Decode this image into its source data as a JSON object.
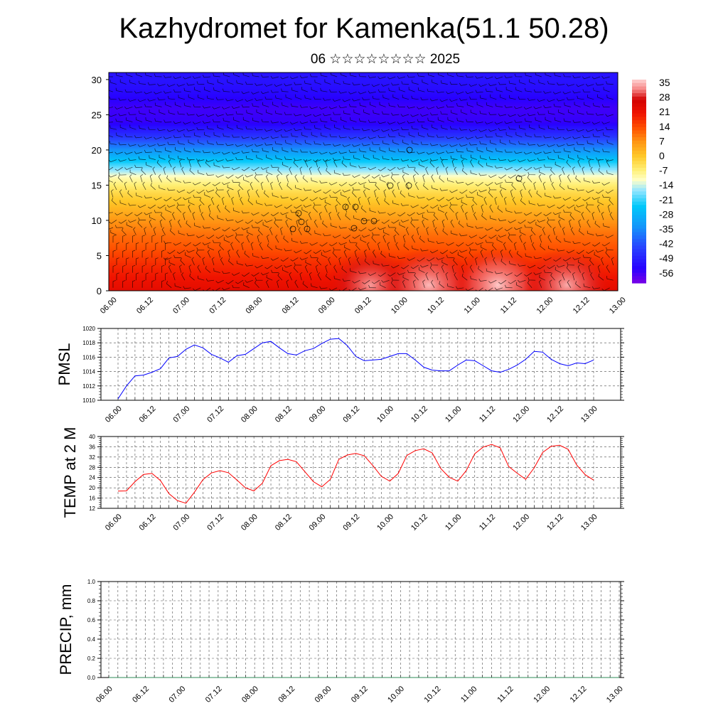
{
  "header": {
    "title": "Kazhydromet for Kamenka(51.1 50.28)",
    "subtitle": "06 ☆☆☆☆☆☆☆☆ 2025"
  },
  "chart_data": [
    {
      "type": "heatmap",
      "title": "",
      "xlabel": "",
      "ylabel": "",
      "x_ticks": [
        "06.00",
        "06.12",
        "07.00",
        "07.12",
        "08.00",
        "08.12",
        "09.00",
        "09.12",
        "10.00",
        "10.12",
        "11.00",
        "11.12",
        "12.00",
        "12.12",
        "13.00"
      ],
      "y_ticks": [
        0,
        5,
        10,
        15,
        20,
        25,
        30
      ],
      "ylim": [
        0,
        31
      ],
      "colorbar_labels": [
        "35",
        "28",
        "21",
        "14",
        "7",
        "0",
        "-7",
        "-14",
        "-21",
        "-28",
        "-35",
        "-42",
        "-49",
        "-56"
      ],
      "colormap_range": [
        -63,
        38
      ],
      "overlay": "wind barbs",
      "profile_levels": [
        0,
        2,
        4,
        6,
        8,
        10,
        12,
        14,
        16,
        18,
        20,
        22,
        24,
        26,
        28,
        30
      ],
      "profile_values": [
        24,
        21,
        18,
        14,
        11,
        7,
        2,
        -3,
        -10,
        -22,
        -35,
        -48,
        -57,
        -58,
        -55,
        -53
      ],
      "surface_hotspots": [
        {
          "x": 3.6,
          "value": 32
        },
        {
          "x": 4.4,
          "value": 34
        },
        {
          "x": 5.35,
          "value": 35
        },
        {
          "x": 6.3,
          "value": 33
        }
      ]
    },
    {
      "type": "line",
      "ylabel": "PMSL",
      "ylim": [
        1010,
        1020
      ],
      "y_ticks": [
        1010,
        1012,
        1014,
        1016,
        1018,
        1020
      ],
      "x_ticks": [
        "06.00",
        "06.12",
        "07.00",
        "07.12",
        "08.00",
        "08.12",
        "09.00",
        "09.12",
        "10.00",
        "10.12",
        "11.00",
        "11.12",
        "12.00",
        "12.12",
        "13.00"
      ],
      "series": [
        {
          "color": "#0000ff",
          "values": [
            1010.2,
            1012.0,
            1013.4,
            1013.5,
            1013.9,
            1014.4,
            1015.9,
            1016.1,
            1017.1,
            1017.7,
            1017.3,
            1016.4,
            1015.9,
            1015.3,
            1016.2,
            1016.4,
            1017.2,
            1018.0,
            1018.2,
            1017.3,
            1016.5,
            1016.3,
            1016.9,
            1017.2,
            1017.9,
            1018.5,
            1018.6,
            1017.6,
            1016.1,
            1015.5,
            1015.6,
            1015.7,
            1016.1,
            1016.5,
            1016.5,
            1015.6,
            1014.6,
            1014.2,
            1014.1,
            1014.1,
            1014.9,
            1015.6,
            1015.5,
            1014.8,
            1014.1,
            1013.9,
            1014.3,
            1014.9,
            1015.7,
            1016.8,
            1016.7,
            1015.7,
            1015.1,
            1014.8,
            1015.2,
            1015.1,
            1015.6
          ]
        }
      ]
    },
    {
      "type": "line",
      "ylabel": "TEMP at 2 M",
      "ylim": [
        12,
        40
      ],
      "y_ticks": [
        12,
        16,
        20,
        24,
        28,
        32,
        36,
        40
      ],
      "x_ticks": [
        "06.00",
        "06.12",
        "07.00",
        "07.12",
        "08.00",
        "08.12",
        "09.00",
        "09.12",
        "10.00",
        "10.12",
        "11.00",
        "11.12",
        "12.00",
        "12.12",
        "13.00"
      ],
      "series": [
        {
          "color": "#ff0000",
          "values": [
            18.7,
            18.8,
            22.4,
            25.2,
            25.6,
            22.8,
            17.7,
            15.0,
            14.0,
            18.3,
            23.2,
            25.8,
            26.7,
            25.9,
            23.0,
            20.0,
            18.8,
            21.8,
            28.6,
            30.6,
            31.1,
            30.2,
            26.3,
            22.4,
            20.4,
            23.3,
            31.1,
            32.8,
            33.4,
            32.5,
            28.7,
            24.5,
            22.6,
            25.6,
            32.6,
            34.5,
            35.2,
            33.6,
            27.5,
            24.1,
            22.6,
            26.7,
            33.3,
            35.9,
            36.9,
            35.6,
            28.3,
            25.7,
            23.3,
            27.8,
            33.8,
            36.2,
            36.6,
            35.0,
            28.9,
            25.1,
            23.0
          ]
        }
      ]
    },
    {
      "type": "line",
      "ylabel": "PRECIP, mm",
      "ylim": [
        0.0,
        1.0
      ],
      "y_ticks": [
        "0.0",
        "0.2",
        "0.4",
        "0.6",
        "0.8",
        "1.0"
      ],
      "x_ticks": [
        "06.00",
        "06.12",
        "07.00",
        "07.12",
        "08.00",
        "08.12",
        "09.00",
        "09.12",
        "10.00",
        "10.12",
        "11.00",
        "11.12",
        "12.00",
        "12.12",
        "13.00"
      ],
      "series": [
        {
          "color": "#2e8b57",
          "values": [
            0,
            0,
            0,
            0,
            0,
            0,
            0,
            0,
            0,
            0,
            0,
            0,
            0,
            0,
            0,
            0,
            0,
            0,
            0,
            0,
            0,
            0,
            0,
            0,
            0,
            0,
            0,
            0,
            0,
            0,
            0,
            0,
            0,
            0,
            0,
            0,
            0,
            0,
            0,
            0,
            0,
            0,
            0,
            0,
            0,
            0,
            0,
            0,
            0,
            0,
            0,
            0,
            0,
            0,
            0,
            0,
            0
          ]
        }
      ]
    }
  ]
}
